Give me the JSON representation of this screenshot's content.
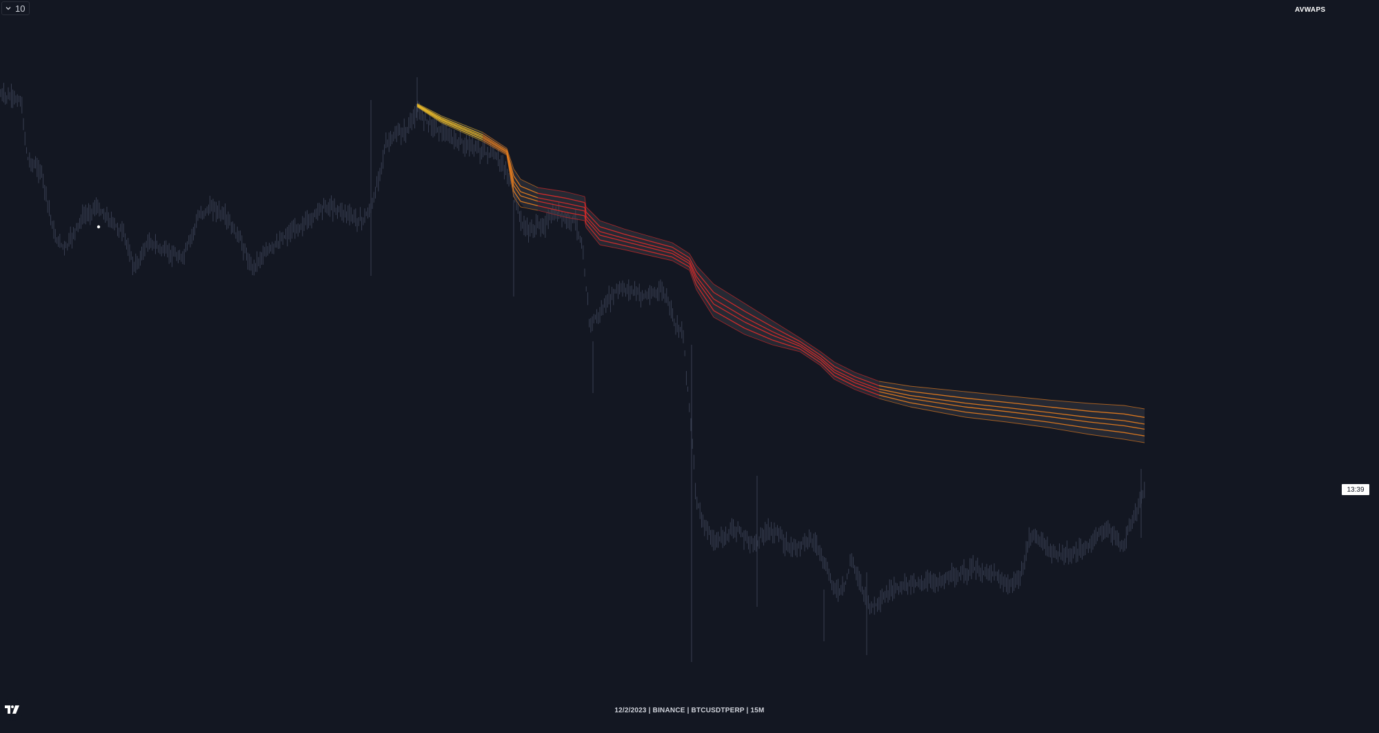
{
  "toolbar": {
    "interval_value": "10",
    "interval_icon": "chevron-down-icon"
  },
  "indicator": {
    "title": "AVWAPS"
  },
  "price_scale": {
    "last_time_label": "13:39"
  },
  "footer": {
    "info": "12/2/2023 | BINANCE | BTCUSDTPERP | 15M"
  },
  "logo": {
    "icon": "tradingview-logo-icon"
  },
  "colors": {
    "background": "#131722",
    "candles": "#3d4458",
    "band_fill": "#2a2d36",
    "vwap_yellow": "#e8b82a",
    "vwap_orange": "#e07a1f",
    "vwap_red": "#d42a2a"
  }
}
